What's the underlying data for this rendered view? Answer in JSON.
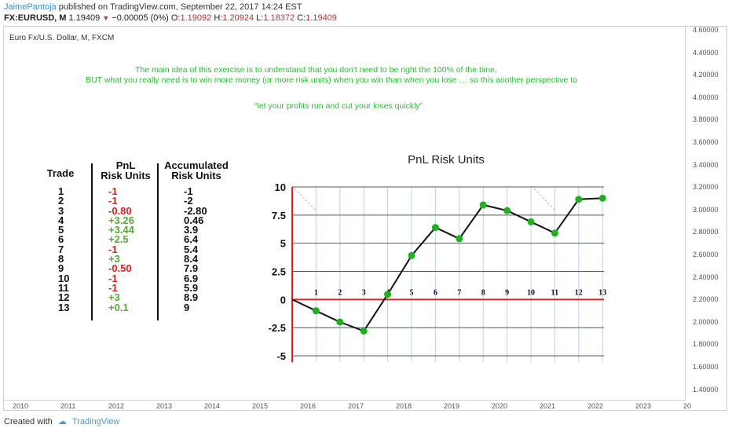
{
  "header": {
    "author": "JaimePantoja",
    "published": "published on TradingView.com, September 22, 2017 14:24 EST",
    "ticker": "FX:EURUSD, M",
    "price": "1.19409",
    "change": "−0.00005 (0%)",
    "o_label": "O:",
    "o_value": "1.19092",
    "h_label": "H:",
    "h_value": "1.20924",
    "l_label": "L:",
    "l_value": "1.18372",
    "c_label": "C:",
    "c_value": "1.19409"
  },
  "symbol_name": "Euro Fx/U.S. Dollar, M, FXCM",
  "price_axis": [
    "4.60000",
    "4.40000",
    "4.20000",
    "4.00000",
    "3.80000",
    "3.60000",
    "3.40000",
    "3.20000",
    "3.00000",
    "2.80000",
    "2.60000",
    "2.40000",
    "2.20000",
    "2.00000",
    "1.80000",
    "1.60000",
    "1.40000"
  ],
  "time_axis": [
    "2010",
    "2011",
    "2012",
    "2013",
    "2014",
    "2015",
    "2016",
    "2017",
    "2018",
    "2019",
    "2020",
    "2021",
    "2022",
    "2023",
    "20"
  ],
  "message": {
    "line1": "The main idea of this exercise is to understand that you don't need to be right the 100% of the time,",
    "line2": "BUT what you really need is to win more money (or more risk units) when you win than when you lose … so this another perspective to",
    "quote": "“let your profits run and cut your loses quickly”"
  },
  "table": {
    "h_trade": "Trade",
    "h_pnl_1": "PnL",
    "h_pnl_2": "Risk Units",
    "h_acc_1": "Accumulated",
    "h_acc_2": "Risk Units",
    "trades": [
      "1",
      "2",
      "3",
      "4",
      "5",
      "6",
      "7",
      "8",
      "9",
      "10",
      "11",
      "12",
      "13"
    ],
    "pnl": [
      "-1",
      "-1",
      "-0.80",
      "+3.26",
      "+3.44",
      "+2.5",
      "-1",
      "+3",
      "-0.50",
      "-1",
      "-1",
      "+3",
      "+0.1"
    ],
    "accumulated": [
      "-1",
      "-2",
      "-2.80",
      "0.46",
      "3.9",
      "6.4",
      "5.4",
      "8.4",
      "7.9",
      "6.9",
      "5.9",
      "8.9",
      "9"
    ]
  },
  "colors": {
    "positive": "#5aa53a",
    "negative": "#e02020",
    "marker": "#1db31d",
    "zero_line": "#e02020",
    "message": "#1fbf2a"
  },
  "chart_data": {
    "type": "line",
    "title": "PnL Risk Units",
    "x": [
      0,
      1,
      2,
      3,
      4,
      5,
      6,
      7,
      8,
      9,
      10,
      11,
      12,
      13
    ],
    "x_tick_labels": [
      "1",
      "2",
      "3",
      "4",
      "5",
      "6",
      "7",
      "8",
      "9",
      "10",
      "11",
      "12",
      "13"
    ],
    "values": [
      0,
      -1,
      -2,
      -2.8,
      0.46,
      3.9,
      6.4,
      5.4,
      8.4,
      7.9,
      6.9,
      5.9,
      8.9,
      9
    ],
    "ylim": [
      -5,
      10
    ],
    "y_ticks": [
      10,
      7.5,
      5,
      2.5,
      0,
      -2.5,
      -5
    ],
    "y_tick_labels": [
      "10",
      "7.5",
      "5",
      "2.5",
      "0",
      "-2.5",
      "-5"
    ],
    "grid": true
  },
  "footer": {
    "created_with": "Created with",
    "brand": "TradingView"
  }
}
